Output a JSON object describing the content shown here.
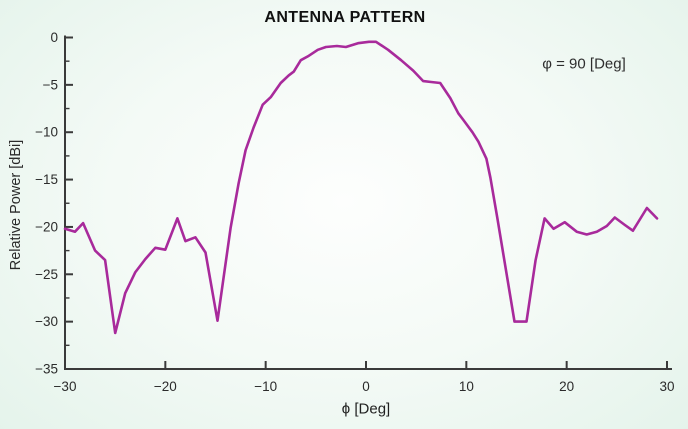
{
  "chart_data": {
    "type": "line",
    "title": "ANTENNA PATTERN",
    "xlabel": "ϕ [Deg]",
    "ylabel": "Relative Power [dBi]",
    "annotation": "φ = 90 [Deg]",
    "xlim": [
      -30,
      30
    ],
    "ylim": [
      -35,
      0
    ],
    "x_ticks": [
      -30,
      -20,
      -10,
      0,
      10,
      20,
      30
    ],
    "y_ticks": [
      0,
      -5,
      -10,
      -15,
      -20,
      -25,
      -30,
      -35
    ],
    "y_minor_tick_step": 2.5,
    "grid": false,
    "legend": "none",
    "line_color": "#a82a9b",
    "axis_color": "#3a3a3a",
    "background_center_color": "#fdfefd",
    "background_edge_color": "#c9e8da",
    "series": [
      {
        "name": "relative_power_phi90",
        "x": [
          -30,
          -29,
          -28.2,
          -27,
          -26,
          -25,
          -24,
          -23,
          -22,
          -21,
          -20,
          -18.8,
          -18,
          -17,
          -16,
          -14.8,
          -13.5,
          -12.7,
          -12,
          -11.2,
          -10.3,
          -9.5,
          -8.5,
          -7.7,
          -7.2,
          -6.5,
          -5.8,
          -4.8,
          -4,
          -2.9,
          -2,
          -0.8,
          0.3,
          1,
          2.2,
          3.5,
          4.7,
          5.7,
          6.5,
          7.4,
          8.4,
          9.2,
          9.7,
          10.6,
          11.2,
          12,
          12.4,
          13.1,
          14.8,
          16,
          16.9,
          17.8,
          18.7,
          19.8,
          21,
          22,
          23,
          24,
          24.8,
          25.8,
          26.6,
          28,
          29
        ],
        "y": [
          -20.2,
          -20.5,
          -19.6,
          -22.5,
          -23.5,
          -31.2,
          -27.0,
          -24.8,
          -23.4,
          -22.2,
          -22.4,
          -19.1,
          -21.5,
          -21.1,
          -22.7,
          -29.9,
          -20.1,
          -15.4,
          -11.9,
          -9.5,
          -7.1,
          -6.3,
          -4.8,
          -4.0,
          -3.6,
          -2.4,
          -2.0,
          -1.3,
          -1.0,
          -0.9,
          -1.0,
          -0.6,
          -0.45,
          -0.45,
          -1.3,
          -2.4,
          -3.5,
          -4.6,
          -4.7,
          -4.8,
          -6.4,
          -8.0,
          -8.7,
          -10.0,
          -11.0,
          -12.8,
          -14.8,
          -19.1,
          -30.0,
          -30.0,
          -23.5,
          -19.1,
          -20.2,
          -19.5,
          -20.5,
          -20.8,
          -20.5,
          -19.9,
          -19.0,
          -19.8,
          -20.4,
          -18.0,
          -19.1
        ]
      }
    ]
  }
}
